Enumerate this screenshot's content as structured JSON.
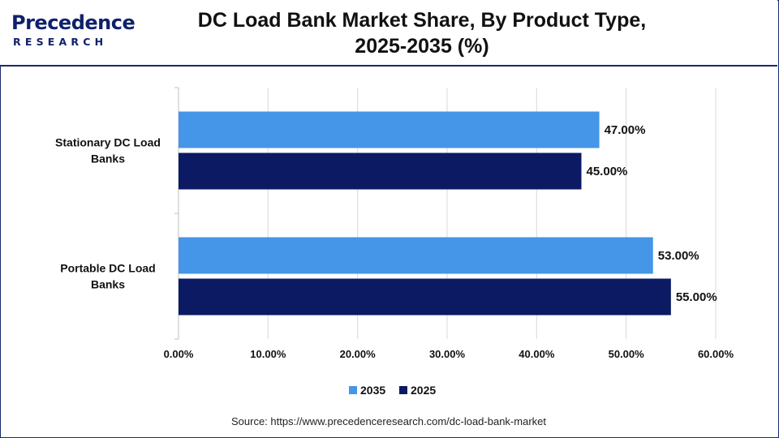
{
  "header": {
    "logo_word": "Precedence",
    "logo_sub": "RESEARCH",
    "title_line1": "DC Load Bank Market Share, By Product Type,",
    "title_line2": "2025-2035 (%)"
  },
  "source": "Source: https://www.precedenceresearch.com/dc-load-bank-market",
  "chart_data": {
    "type": "bar",
    "orientation": "horizontal",
    "title": "DC Load Bank Market Share, By Product Type, 2025-2035 (%)",
    "categories": [
      "Stationary DC Load Banks",
      "Portable DC Load Banks"
    ],
    "series": [
      {
        "name": "2035",
        "values": [
          47.0,
          53.0
        ],
        "labels": [
          "47.00%",
          "53.00%"
        ],
        "color": "#4595e8"
      },
      {
        "name": "2025",
        "values": [
          45.0,
          55.0
        ],
        "labels": [
          "45.00%",
          "55.00%"
        ],
        "color": "#0b1a63"
      }
    ],
    "xlim": [
      0,
      60
    ],
    "xticks": [
      "0.00%",
      "10.00%",
      "20.00%",
      "30.00%",
      "40.00%",
      "50.00%",
      "60.00%"
    ],
    "grid": true,
    "legend_position": "bottom"
  }
}
